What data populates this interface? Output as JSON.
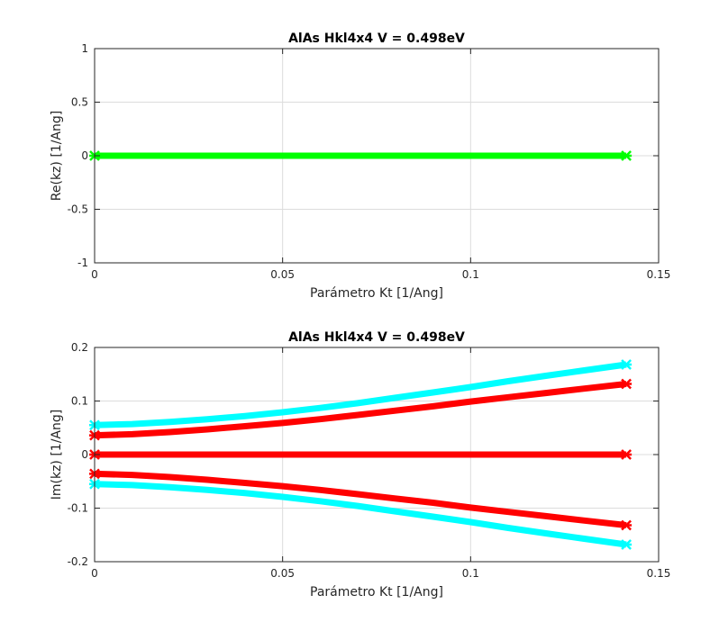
{
  "colors": {
    "green": "#00ff00",
    "cyan": "#00ffff",
    "red": "#ff0000",
    "axis": "#262626",
    "grid": "#dcdcdc"
  },
  "chart_data": [
    {
      "type": "line",
      "title": "AlAs Hkl4x4 V = 0.498eV",
      "xlabel": "Parámetro Kt [1/Ang]",
      "ylabel": "Re(kz) [1/Ang]",
      "xlim": [
        0,
        0.15
      ],
      "ylim": [
        -1,
        1
      ],
      "xticks": [
        "0",
        "0.05",
        "0.1",
        "0.15"
      ],
      "yticks": [
        "-1",
        "-0.5",
        "0",
        "0.5",
        "1"
      ],
      "grid": true,
      "series": [
        {
          "color": "#00ff00",
          "x": [
            0,
            0.01,
            0.02,
            0.03,
            0.04,
            0.05,
            0.06,
            0.07,
            0.08,
            0.09,
            0.1,
            0.11,
            0.12,
            0.13,
            0.1414
          ],
          "y": [
            0,
            0,
            0,
            0,
            0,
            0,
            0,
            0,
            0,
            0,
            0,
            0,
            0,
            0,
            0
          ]
        }
      ]
    },
    {
      "type": "line",
      "title": "AlAs Hkl4x4 V = 0.498eV",
      "xlabel": "Parámetro Kt [1/Ang]",
      "ylabel": "Im(kz) [1/Ang]",
      "xlim": [
        0,
        0.15
      ],
      "ylim": [
        -0.2,
        0.2
      ],
      "xticks": [
        "0",
        "0.05",
        "0.1",
        "0.15"
      ],
      "yticks": [
        "-0.2",
        "-0.1",
        "0",
        "0.1",
        "0.2"
      ],
      "grid": true,
      "series": [
        {
          "color": "#00ffff",
          "x": [
            0,
            0.01,
            0.02,
            0.03,
            0.04,
            0.05,
            0.06,
            0.07,
            0.08,
            0.09,
            0.1,
            0.11,
            0.12,
            0.13,
            0.1414
          ],
          "y": [
            0.055,
            0.057,
            0.061,
            0.066,
            0.072,
            0.079,
            0.087,
            0.096,
            0.106,
            0.116,
            0.126,
            0.137,
            0.147,
            0.157,
            0.168
          ]
        },
        {
          "color": "#ff0000",
          "x": [
            0,
            0.01,
            0.02,
            0.03,
            0.04,
            0.05,
            0.06,
            0.07,
            0.08,
            0.09,
            0.1,
            0.11,
            0.12,
            0.13,
            0.1414
          ],
          "y": [
            0.036,
            0.038,
            0.042,
            0.047,
            0.053,
            0.059,
            0.066,
            0.074,
            0.082,
            0.09,
            0.099,
            0.107,
            0.115,
            0.123,
            0.132
          ]
        },
        {
          "color": "#ff0000",
          "x": [
            0,
            0.01,
            0.02,
            0.03,
            0.04,
            0.05,
            0.06,
            0.07,
            0.08,
            0.09,
            0.1,
            0.11,
            0.12,
            0.13,
            0.1414
          ],
          "y": [
            0,
            0,
            0,
            0,
            0,
            0,
            0,
            0,
            0,
            0,
            0,
            0,
            0,
            0,
            0
          ]
        },
        {
          "color": "#ff0000",
          "x": [
            0,
            0.01,
            0.02,
            0.03,
            0.04,
            0.05,
            0.06,
            0.07,
            0.08,
            0.09,
            0.1,
            0.11,
            0.12,
            0.13,
            0.1414
          ],
          "y": [
            -0.036,
            -0.038,
            -0.042,
            -0.047,
            -0.053,
            -0.059,
            -0.066,
            -0.074,
            -0.082,
            -0.09,
            -0.099,
            -0.107,
            -0.115,
            -0.123,
            -0.132
          ]
        },
        {
          "color": "#00ffff",
          "x": [
            0,
            0.01,
            0.02,
            0.03,
            0.04,
            0.05,
            0.06,
            0.07,
            0.08,
            0.09,
            0.1,
            0.11,
            0.12,
            0.13,
            0.1414
          ],
          "y": [
            -0.055,
            -0.057,
            -0.061,
            -0.066,
            -0.072,
            -0.079,
            -0.087,
            -0.096,
            -0.106,
            -0.116,
            -0.126,
            -0.137,
            -0.147,
            -0.157,
            -0.168
          ]
        }
      ]
    }
  ]
}
